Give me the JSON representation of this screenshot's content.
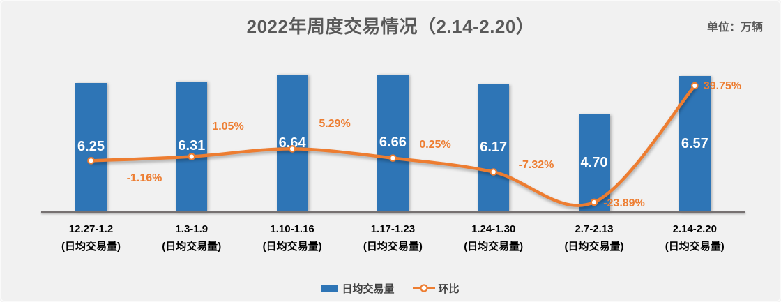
{
  "header": {
    "title": "2022年周度交易情况（2.14-2.20）",
    "unit_label": "单位：万辆"
  },
  "legend": {
    "bar_label": "日均交易量",
    "line_label": "环比"
  },
  "colors": {
    "bar": "#2E75B6",
    "line": "#ED7D31",
    "marker_fill": "#FFFFFF",
    "title_text": "#595959",
    "category_text": "#000000",
    "percent_label_text": "#ED7D31",
    "bar_value_text": "#FFFFFF",
    "background": "#F1F1F1",
    "axis_line": "#767171"
  },
  "chart_data": {
    "type": "combo",
    "title": "2022年周度交易情况（2.14-2.20）",
    "unit": "万辆",
    "categories": [
      "12.27-1.2",
      "1.3-1.9",
      "1.10-1.16",
      "1.17-1.23",
      "1.24-1.30",
      "2.7-2.13",
      "2.14-2.20"
    ],
    "category_sublabel": "(日均交易量)",
    "series": [
      {
        "name": "日均交易量",
        "type": "bar",
        "values": [
          6.25,
          6.31,
          6.64,
          6.66,
          6.17,
          4.7,
          6.57
        ],
        "labels": [
          "6.25",
          "6.31",
          "6.64",
          "6.66",
          "6.17",
          "4.70",
          "6.57"
        ]
      },
      {
        "name": "环比",
        "type": "line",
        "unit": "%",
        "values": [
          -1.16,
          1.05,
          5.29,
          0.25,
          -7.32,
          -23.89,
          39.75
        ],
        "labels": [
          "-1.16%",
          "1.05%",
          "5.29%",
          "0.25%",
          "-7.32%",
          "-23.89%",
          "39.75%"
        ]
      }
    ],
    "value_axis_implied_range": [
      0,
      7
    ],
    "percent_axis_implied_range": [
      -30,
      45
    ],
    "grid": false,
    "legend_position": "bottom",
    "smoothed_line": true
  }
}
